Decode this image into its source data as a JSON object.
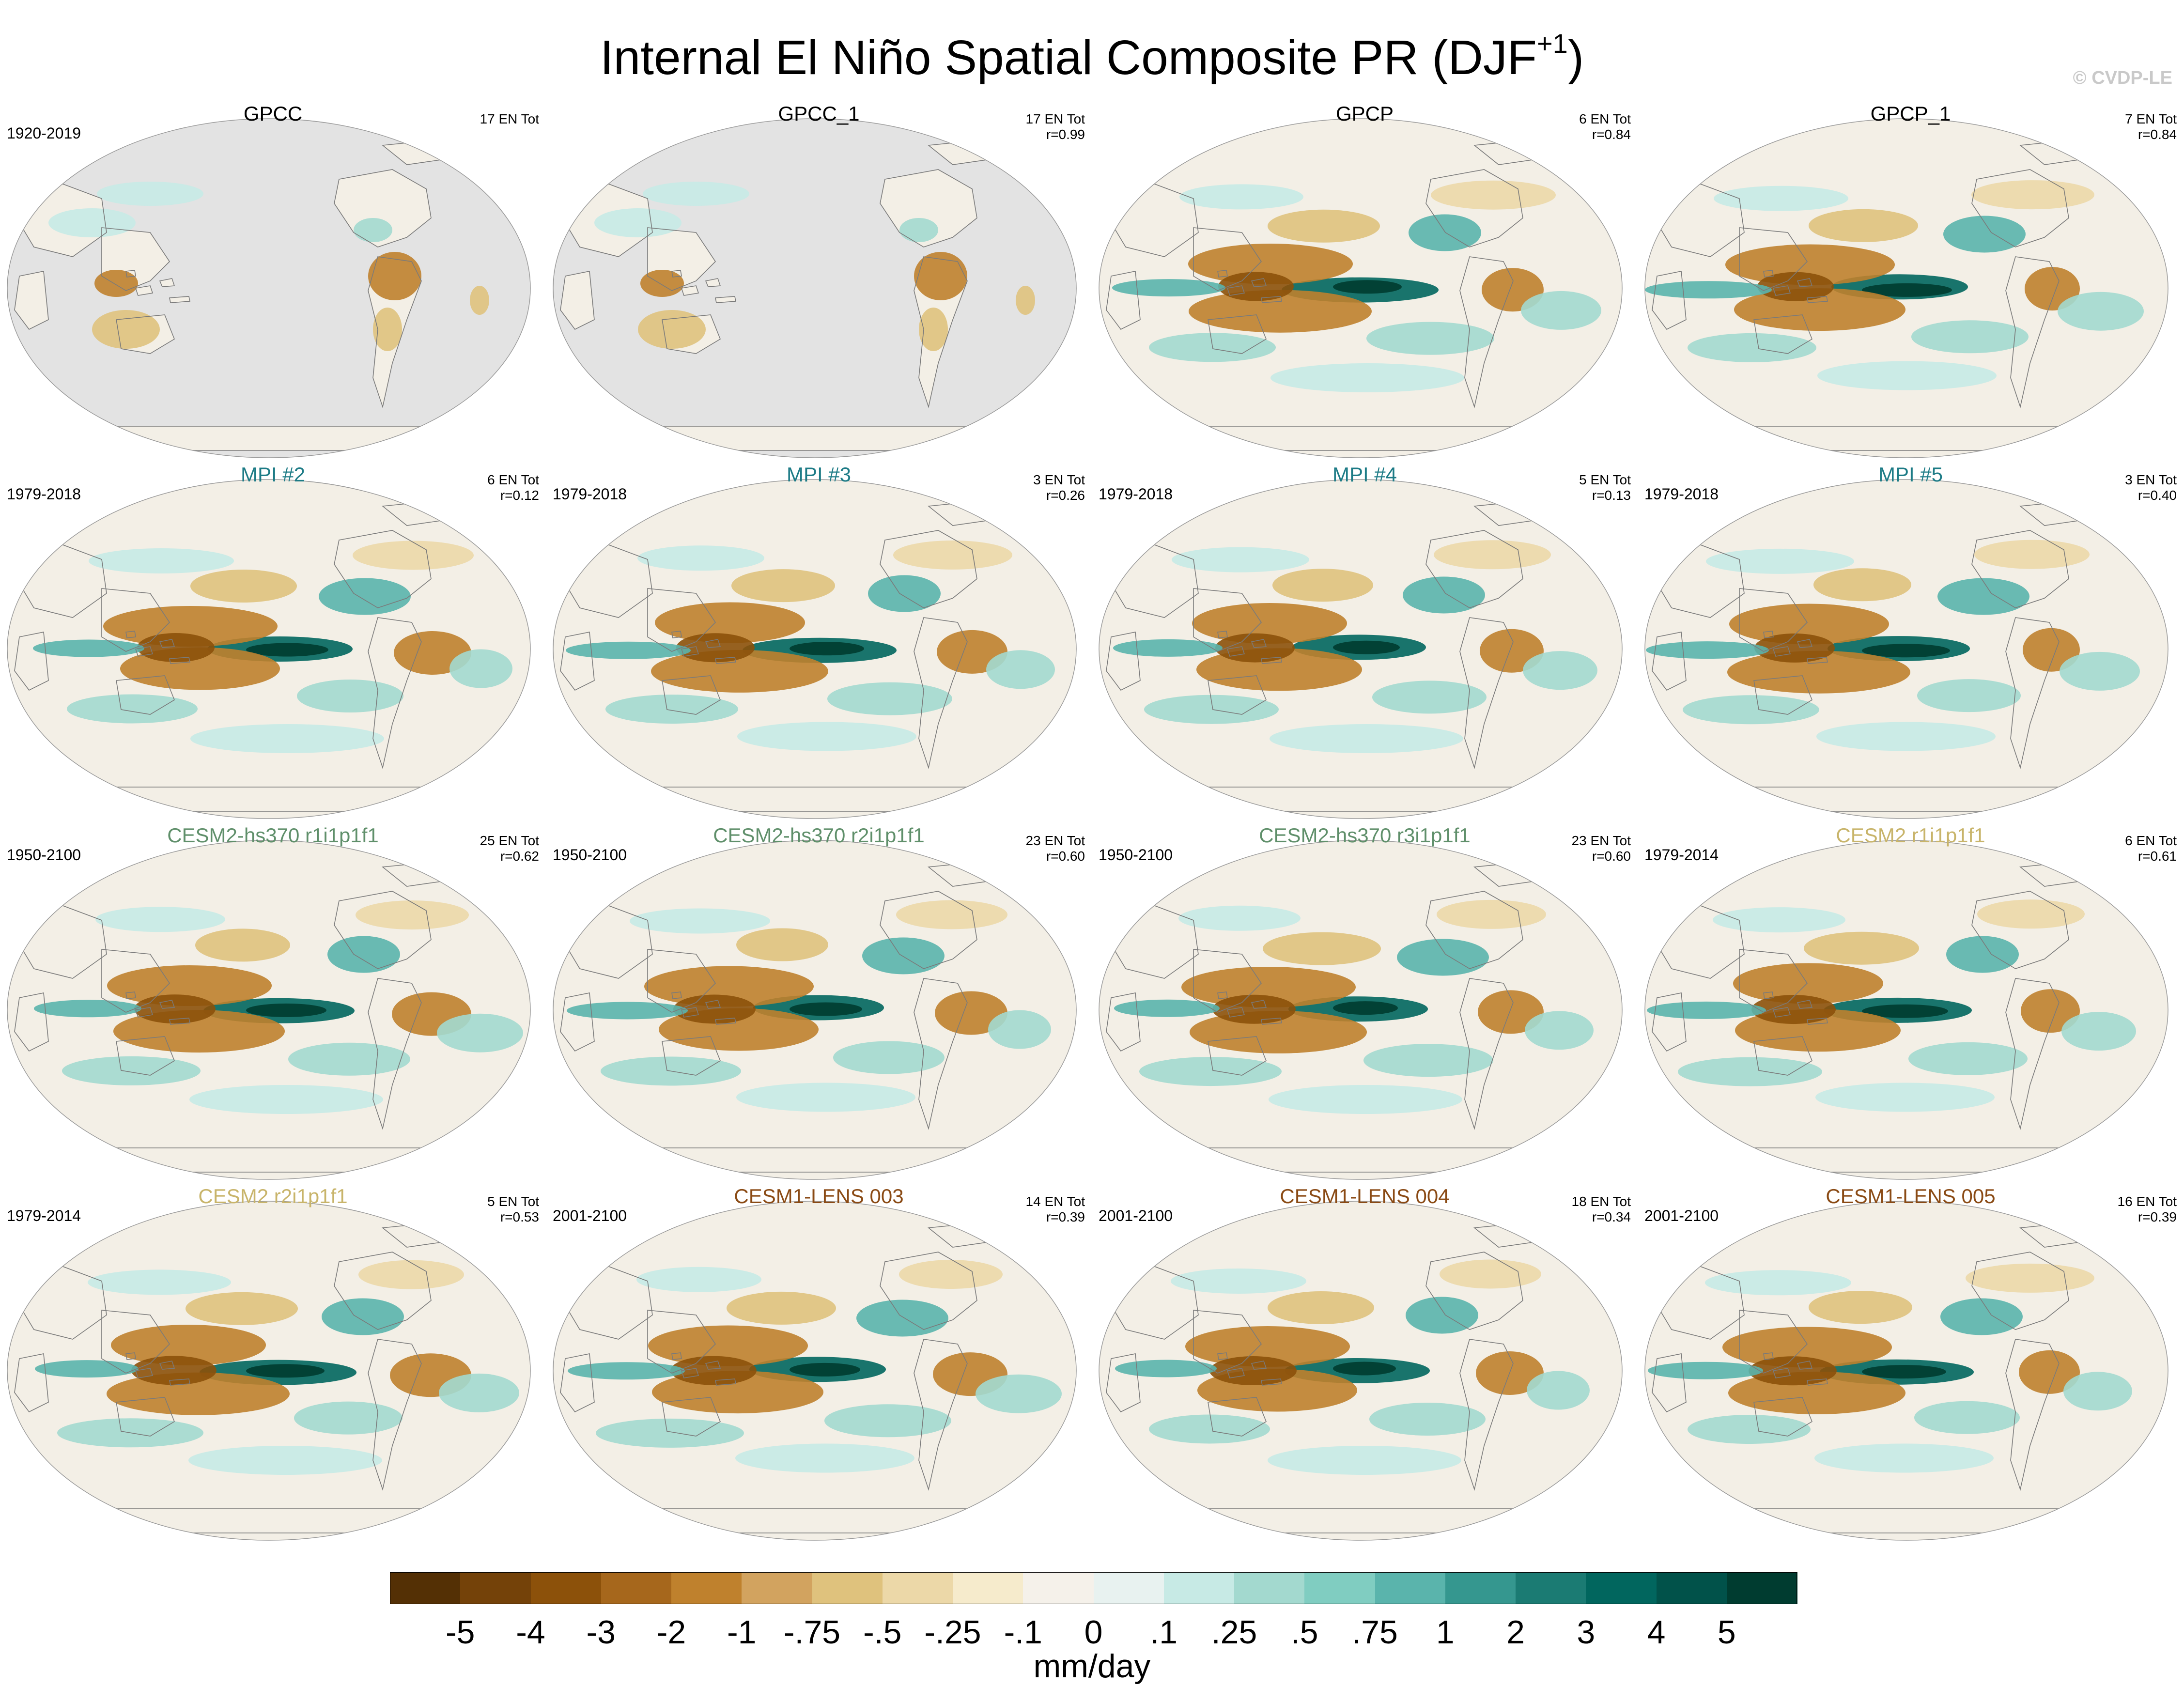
{
  "title": {
    "main": "Internal El Niño Spatial Composite PR (DJF",
    "superscript": "+1",
    "close": ")"
  },
  "copyright": "© CVDP-LE",
  "colors": {
    "land_mask": "#e3e3e3",
    "ocean_neutral": "#f3efe6",
    "coast": "#7a7a7a",
    "obs_title": "#000000",
    "mpi_title": "#1d7b86",
    "cesm2_hs370_title": "#5f8f6a",
    "cesm2_title": "#c8b46a",
    "cesm1_lens_title": "#8a4a14"
  },
  "panels": [
    {
      "title": "GPCC",
      "title_group": "obs",
      "period": "1920-2019",
      "events": "17 EN Tot",
      "corr": "",
      "coverage": "land-only"
    },
    {
      "title": "GPCC_1",
      "title_group": "obs",
      "period": "",
      "events": "17 EN Tot",
      "corr": "r=0.99",
      "coverage": "land-only"
    },
    {
      "title": "GPCP",
      "title_group": "obs",
      "period": "",
      "events": "6 EN Tot",
      "corr": "r=0.84",
      "coverage": "global"
    },
    {
      "title": "GPCP_1",
      "title_group": "obs",
      "period": "",
      "events": "7 EN Tot",
      "corr": "r=0.84",
      "coverage": "global"
    },
    {
      "title": "MPI #2",
      "title_group": "mpi",
      "period": "1979-2018",
      "events": "6 EN Tot",
      "corr": "r=0.12",
      "coverage": "global"
    },
    {
      "title": "MPI #3",
      "title_group": "mpi",
      "period": "1979-2018",
      "events": "3 EN Tot",
      "corr": "r=0.26",
      "coverage": "global"
    },
    {
      "title": "MPI #4",
      "title_group": "mpi",
      "period": "1979-2018",
      "events": "5 EN Tot",
      "corr": "r=0.13",
      "coverage": "global"
    },
    {
      "title": "MPI #5",
      "title_group": "mpi",
      "period": "1979-2018",
      "events": "3 EN Tot",
      "corr": "r=0.40",
      "coverage": "global"
    },
    {
      "title": "CESM2-hs370 r1i1p1f1",
      "title_group": "cesm2_hs370",
      "period": "1950-2100",
      "events": "25 EN Tot",
      "corr": "r=0.62",
      "coverage": "global"
    },
    {
      "title": "CESM2-hs370 r2i1p1f1",
      "title_group": "cesm2_hs370",
      "period": "1950-2100",
      "events": "23 EN Tot",
      "corr": "r=0.60",
      "coverage": "global"
    },
    {
      "title": "CESM2-hs370 r3i1p1f1",
      "title_group": "cesm2_hs370",
      "period": "1950-2100",
      "events": "23 EN Tot",
      "corr": "r=0.60",
      "coverage": "global"
    },
    {
      "title": "CESM2 r1i1p1f1",
      "title_group": "cesm2",
      "period": "1979-2014",
      "events": "6 EN Tot",
      "corr": "r=0.61",
      "coverage": "global"
    },
    {
      "title": "CESM2 r2i1p1f1",
      "title_group": "cesm2",
      "period": "1979-2014",
      "events": "5 EN Tot",
      "corr": "r=0.53",
      "coverage": "global"
    },
    {
      "title": "CESM1-LENS 003",
      "title_group": "cesm1_lens",
      "period": "2001-2100",
      "events": "14 EN Tot",
      "corr": "r=0.39",
      "coverage": "global"
    },
    {
      "title": "CESM1-LENS 004",
      "title_group": "cesm1_lens",
      "period": "2001-2100",
      "events": "18 EN Tot",
      "corr": "r=0.34",
      "coverage": "global"
    },
    {
      "title": "CESM1-LENS 005",
      "title_group": "cesm1_lens",
      "period": "2001-2100",
      "events": "16 EN Tot",
      "corr": "r=0.39",
      "coverage": "global"
    }
  ],
  "colorbar": {
    "units": "mm/day",
    "labels": [
      "-5",
      "-4",
      "-3",
      "-2",
      "-1",
      "-.75",
      "-.5",
      "-.25",
      "-.1",
      "0",
      ".1",
      ".25",
      ".5",
      ".75",
      "1",
      "2",
      "3",
      "4",
      "5"
    ],
    "colors": [
      "#543005",
      "#744209",
      "#8c510a",
      "#a6671c",
      "#bf812d",
      "#d2a35f",
      "#dfc27d",
      "#ecd8a8",
      "#f6ebcc",
      "#f5f1ea",
      "#e8f2f0",
      "#c7eae5",
      "#a3d9cf",
      "#80cdc1",
      "#5ab4ac",
      "#35978f",
      "#1b7b73",
      "#01665e",
      "#01524a",
      "#003c30"
    ]
  }
}
